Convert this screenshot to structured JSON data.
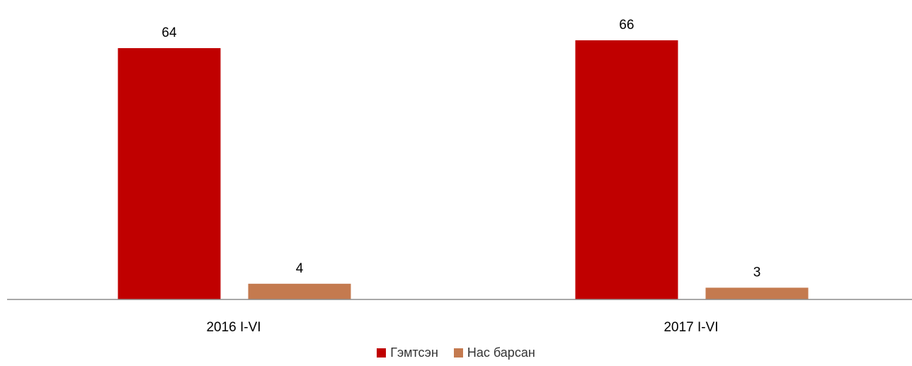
{
  "chart_data": {
    "type": "bar",
    "categories": [
      "2016 I-VI",
      "2017 I-VI"
    ],
    "series": [
      {
        "name": "Гэмтсэн",
        "values": [
          64,
          66
        ],
        "color": "#c00000"
      },
      {
        "name": "Нас барсан",
        "values": [
          4,
          3
        ],
        "color": "#c47a4f"
      }
    ],
    "data_labels": [
      "64",
      "4",
      "66",
      "3"
    ],
    "ylim": [
      0,
      70
    ],
    "grid": false,
    "legend_position": "bottom",
    "axis_color": "#8c8c8c"
  }
}
